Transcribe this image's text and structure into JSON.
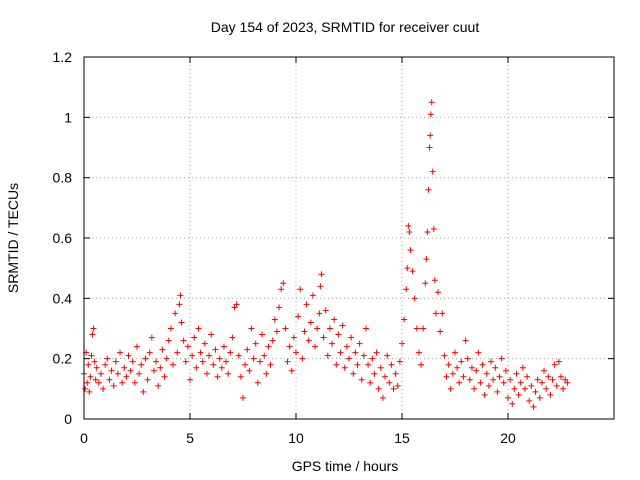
{
  "chart_data": {
    "type": "scatter",
    "title": "Day 154 of 2023, SRMTID for receiver cuut",
    "xlabel": "GPS time / hours",
    "ylabel": "SRMTID / TECUs",
    "xlim": [
      0,
      25
    ],
    "ylim": [
      0,
      1.2
    ],
    "xticks": [
      0,
      5,
      10,
      15,
      20
    ],
    "xtick_labels": [
      "0",
      "5",
      "10",
      "15",
      "20"
    ],
    "yticks": [
      0,
      0.2,
      0.4,
      0.6,
      0.8,
      1,
      1.2
    ],
    "ytick_labels": [
      "0",
      "0.2",
      "0.4",
      "0.6",
      "0.8",
      "1",
      "1.2"
    ],
    "grid": true,
    "marker": "+",
    "color": "#ff0000",
    "series": [
      {
        "name": "SRMTID",
        "points": [
          [
            0.0,
            0.15
          ],
          [
            0.05,
            0.1
          ],
          [
            0.1,
            0.22
          ],
          [
            0.15,
            0.12
          ],
          [
            0.2,
            0.18
          ],
          [
            0.25,
            0.09
          ],
          [
            0.3,
            0.14
          ],
          [
            0.35,
            0.21
          ],
          [
            0.4,
            0.28
          ],
          [
            0.45,
            0.3
          ],
          [
            0.5,
            0.19
          ],
          [
            0.55,
            0.13
          ],
          [
            0.6,
            0.17
          ],
          [
            0.7,
            0.12
          ],
          [
            0.8,
            0.15
          ],
          [
            0.9,
            0.1
          ],
          [
            1.0,
            0.18
          ],
          [
            1.1,
            0.2
          ],
          [
            1.2,
            0.13
          ],
          [
            1.3,
            0.16
          ],
          [
            1.4,
            0.11
          ],
          [
            1.5,
            0.19
          ],
          [
            1.6,
            0.15
          ],
          [
            1.7,
            0.22
          ],
          [
            1.8,
            0.12
          ],
          [
            1.9,
            0.17
          ],
          [
            2.0,
            0.14
          ],
          [
            2.1,
            0.21
          ],
          [
            2.2,
            0.16
          ],
          [
            2.3,
            0.19
          ],
          [
            2.4,
            0.12
          ],
          [
            2.5,
            0.24
          ],
          [
            2.6,
            0.15
          ],
          [
            2.7,
            0.18
          ],
          [
            2.8,
            0.09
          ],
          [
            2.9,
            0.2
          ],
          [
            3.0,
            0.13
          ],
          [
            3.1,
            0.22
          ],
          [
            3.2,
            0.27
          ],
          [
            3.3,
            0.16
          ],
          [
            3.4,
            0.19
          ],
          [
            3.5,
            0.11
          ],
          [
            3.6,
            0.17
          ],
          [
            3.7,
            0.23
          ],
          [
            3.8,
            0.14
          ],
          [
            3.9,
            0.2
          ],
          [
            4.0,
            0.26
          ],
          [
            4.1,
            0.3
          ],
          [
            4.2,
            0.18
          ],
          [
            4.3,
            0.35
          ],
          [
            4.4,
            0.22
          ],
          [
            4.5,
            0.38
          ],
          [
            4.55,
            0.41
          ],
          [
            4.6,
            0.32
          ],
          [
            4.7,
            0.26
          ],
          [
            4.8,
            0.19
          ],
          [
            4.9,
            0.24
          ],
          [
            5.0,
            0.13
          ],
          [
            5.1,
            0.21
          ],
          [
            5.2,
            0.27
          ],
          [
            5.3,
            0.17
          ],
          [
            5.4,
            0.3
          ],
          [
            5.5,
            0.22
          ],
          [
            5.6,
            0.19
          ],
          [
            5.7,
            0.25
          ],
          [
            5.8,
            0.15
          ],
          [
            5.9,
            0.21
          ],
          [
            6.0,
            0.28
          ],
          [
            6.1,
            0.18
          ],
          [
            6.2,
            0.23
          ],
          [
            6.3,
            0.14
          ],
          [
            6.4,
            0.2
          ],
          [
            6.5,
            0.17
          ],
          [
            6.6,
            0.24
          ],
          [
            6.7,
            0.19
          ],
          [
            6.8,
            0.15
          ],
          [
            6.9,
            0.22
          ],
          [
            7.0,
            0.27
          ],
          [
            7.1,
            0.37
          ],
          [
            7.2,
            0.38
          ],
          [
            7.3,
            0.21
          ],
          [
            7.4,
            0.14
          ],
          [
            7.5,
            0.07
          ],
          [
            7.6,
            0.18
          ],
          [
            7.7,
            0.23
          ],
          [
            7.8,
            0.16
          ],
          [
            7.9,
            0.3
          ],
          [
            8.0,
            0.2
          ],
          [
            8.1,
            0.25
          ],
          [
            8.2,
            0.12
          ],
          [
            8.3,
            0.19
          ],
          [
            8.4,
            0.28
          ],
          [
            8.5,
            0.21
          ],
          [
            8.6,
            0.15
          ],
          [
            8.7,
            0.24
          ],
          [
            8.8,
            0.18
          ],
          [
            8.9,
            0.26
          ],
          [
            9.0,
            0.33
          ],
          [
            9.1,
            0.29
          ],
          [
            9.2,
            0.37
          ],
          [
            9.3,
            0.43
          ],
          [
            9.4,
            0.45
          ],
          [
            9.5,
            0.3
          ],
          [
            9.6,
            0.19
          ],
          [
            9.7,
            0.24
          ],
          [
            9.8,
            0.16
          ],
          [
            9.9,
            0.27
          ],
          [
            10.0,
            0.22
          ],
          [
            10.1,
            0.34
          ],
          [
            10.2,
            0.43
          ],
          [
            10.3,
            0.2
          ],
          [
            10.4,
            0.29
          ],
          [
            10.5,
            0.38
          ],
          [
            10.6,
            0.26
          ],
          [
            10.7,
            0.32
          ],
          [
            10.8,
            0.41
          ],
          [
            10.9,
            0.24
          ],
          [
            11.0,
            0.3
          ],
          [
            11.1,
            0.35
          ],
          [
            11.15,
            0.44
          ],
          [
            11.2,
            0.48
          ],
          [
            11.3,
            0.27
          ],
          [
            11.4,
            0.36
          ],
          [
            11.5,
            0.21
          ],
          [
            11.6,
            0.3
          ],
          [
            11.7,
            0.25
          ],
          [
            11.8,
            0.33
          ],
          [
            11.9,
            0.18
          ],
          [
            12.0,
            0.28
          ],
          [
            12.1,
            0.22
          ],
          [
            12.2,
            0.31
          ],
          [
            12.3,
            0.17
          ],
          [
            12.4,
            0.24
          ],
          [
            12.5,
            0.2
          ],
          [
            12.6,
            0.27
          ],
          [
            12.7,
            0.15
          ],
          [
            12.8,
            0.22
          ],
          [
            12.9,
            0.18
          ],
          [
            13.0,
            0.25
          ],
          [
            13.1,
            0.13
          ],
          [
            13.2,
            0.21
          ],
          [
            13.3,
            0.3
          ],
          [
            13.4,
            0.18
          ],
          [
            13.5,
            0.12
          ],
          [
            13.6,
            0.2
          ],
          [
            13.7,
            0.15
          ],
          [
            13.8,
            0.22
          ],
          [
            13.9,
            0.1
          ],
          [
            14.0,
            0.17
          ],
          [
            14.1,
            0.07
          ],
          [
            14.2,
            0.14
          ],
          [
            14.3,
            0.21
          ],
          [
            14.4,
            0.12
          ],
          [
            14.5,
            0.18
          ],
          [
            14.6,
            0.1
          ],
          [
            14.7,
            0.15
          ],
          [
            14.8,
            0.11
          ],
          [
            14.9,
            0.19
          ],
          [
            15.0,
            0.25
          ],
          [
            15.1,
            0.33
          ],
          [
            15.2,
            0.43
          ],
          [
            15.25,
            0.5
          ],
          [
            15.3,
            0.64
          ],
          [
            15.35,
            0.62
          ],
          [
            15.4,
            0.56
          ],
          [
            15.5,
            0.49
          ],
          [
            15.6,
            0.4
          ],
          [
            15.7,
            0.3
          ],
          [
            15.8,
            0.22
          ],
          [
            15.9,
            0.18
          ],
          [
            16.0,
            0.3
          ],
          [
            16.1,
            0.45
          ],
          [
            16.15,
            0.53
          ],
          [
            16.2,
            0.62
          ],
          [
            16.25,
            0.76
          ],
          [
            16.3,
            0.9
          ],
          [
            16.33,
            0.94
          ],
          [
            16.36,
            1.01
          ],
          [
            16.4,
            1.05
          ],
          [
            16.45,
            0.82
          ],
          [
            16.5,
            0.63
          ],
          [
            16.55,
            0.46
          ],
          [
            16.6,
            0.35
          ],
          [
            16.7,
            0.42
          ],
          [
            16.8,
            0.29
          ],
          [
            16.9,
            0.35
          ],
          [
            17.0,
            0.21
          ],
          [
            17.1,
            0.14
          ],
          [
            17.2,
            0.18
          ],
          [
            17.3,
            0.1
          ],
          [
            17.4,
            0.15
          ],
          [
            17.5,
            0.22
          ],
          [
            17.6,
            0.17
          ],
          [
            17.7,
            0.12
          ],
          [
            17.8,
            0.19
          ],
          [
            17.9,
            0.14
          ],
          [
            18.0,
            0.26
          ],
          [
            18.1,
            0.2
          ],
          [
            18.2,
            0.13
          ],
          [
            18.3,
            0.17
          ],
          [
            18.4,
            0.1
          ],
          [
            18.5,
            0.16
          ],
          [
            18.6,
            0.22
          ],
          [
            18.7,
            0.12
          ],
          [
            18.8,
            0.18
          ],
          [
            18.9,
            0.08
          ],
          [
            19.0,
            0.15
          ],
          [
            19.1,
            0.11
          ],
          [
            19.2,
            0.19
          ],
          [
            19.3,
            0.13
          ],
          [
            19.4,
            0.17
          ],
          [
            19.5,
            0.09
          ],
          [
            19.6,
            0.14
          ],
          [
            19.7,
            0.2
          ],
          [
            19.8,
            0.12
          ],
          [
            19.9,
            0.16
          ],
          [
            20.0,
            0.07
          ],
          [
            20.1,
            0.13
          ],
          [
            20.2,
            0.05
          ],
          [
            20.3,
            0.1
          ],
          [
            20.4,
            0.15
          ],
          [
            20.5,
            0.08
          ],
          [
            20.6,
            0.12
          ],
          [
            20.7,
            0.17
          ],
          [
            20.8,
            0.1
          ],
          [
            20.9,
            0.14
          ],
          [
            21.0,
            0.06
          ],
          [
            21.1,
            0.11
          ],
          [
            21.2,
            0.04
          ],
          [
            21.3,
            0.09
          ],
          [
            21.4,
            0.13
          ],
          [
            21.5,
            0.07
          ],
          [
            21.6,
            0.12
          ],
          [
            21.7,
            0.16
          ],
          [
            21.8,
            0.1
          ],
          [
            21.9,
            0.14
          ],
          [
            22.0,
            0.08
          ],
          [
            22.1,
            0.13
          ],
          [
            22.2,
            0.18
          ],
          [
            22.3,
            0.11
          ],
          [
            22.4,
            0.19
          ],
          [
            22.5,
            0.14
          ],
          [
            22.6,
            0.1
          ],
          [
            22.7,
            0.13
          ],
          [
            22.8,
            0.12
          ]
        ]
      }
    ]
  }
}
